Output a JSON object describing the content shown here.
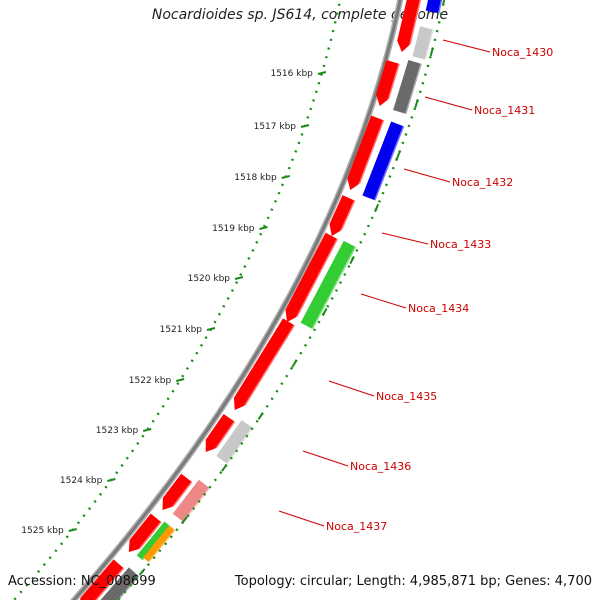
{
  "title": "Nocardioides sp. JS614, complete genome",
  "accession_text": "Accession: NC_008699",
  "summary_text": "Topology: circular; Length: 4,985,871 bp; Genes: 4,700",
  "colors": {
    "backbone": "#7a7a7a",
    "tick_green": "#1a8a1a",
    "label_red": "#cc0000",
    "gene_red": "#ff0000",
    "gene_blue": "#0000ee",
    "gene_green": "#33cc33",
    "gene_gray_light": "#c8c8c8",
    "gene_gray_dark": "#6a6a6a",
    "gene_pink": "#ee8888",
    "gene_orange": "#ff9900"
  },
  "kbp_markers": [
    "1516 kbp",
    "1517 kbp",
    "1518 kbp",
    "1519 kbp",
    "1520 kbp",
    "1521 kbp",
    "1522 kbp",
    "1523 kbp",
    "1524 kbp",
    "1525 kbp"
  ],
  "gene_labels": [
    "Noca_1430",
    "Noca_1431",
    "Noca_1432",
    "Noca_1433",
    "Noca_1434",
    "Noca_1435",
    "Noca_1436",
    "Noca_1437"
  ]
}
